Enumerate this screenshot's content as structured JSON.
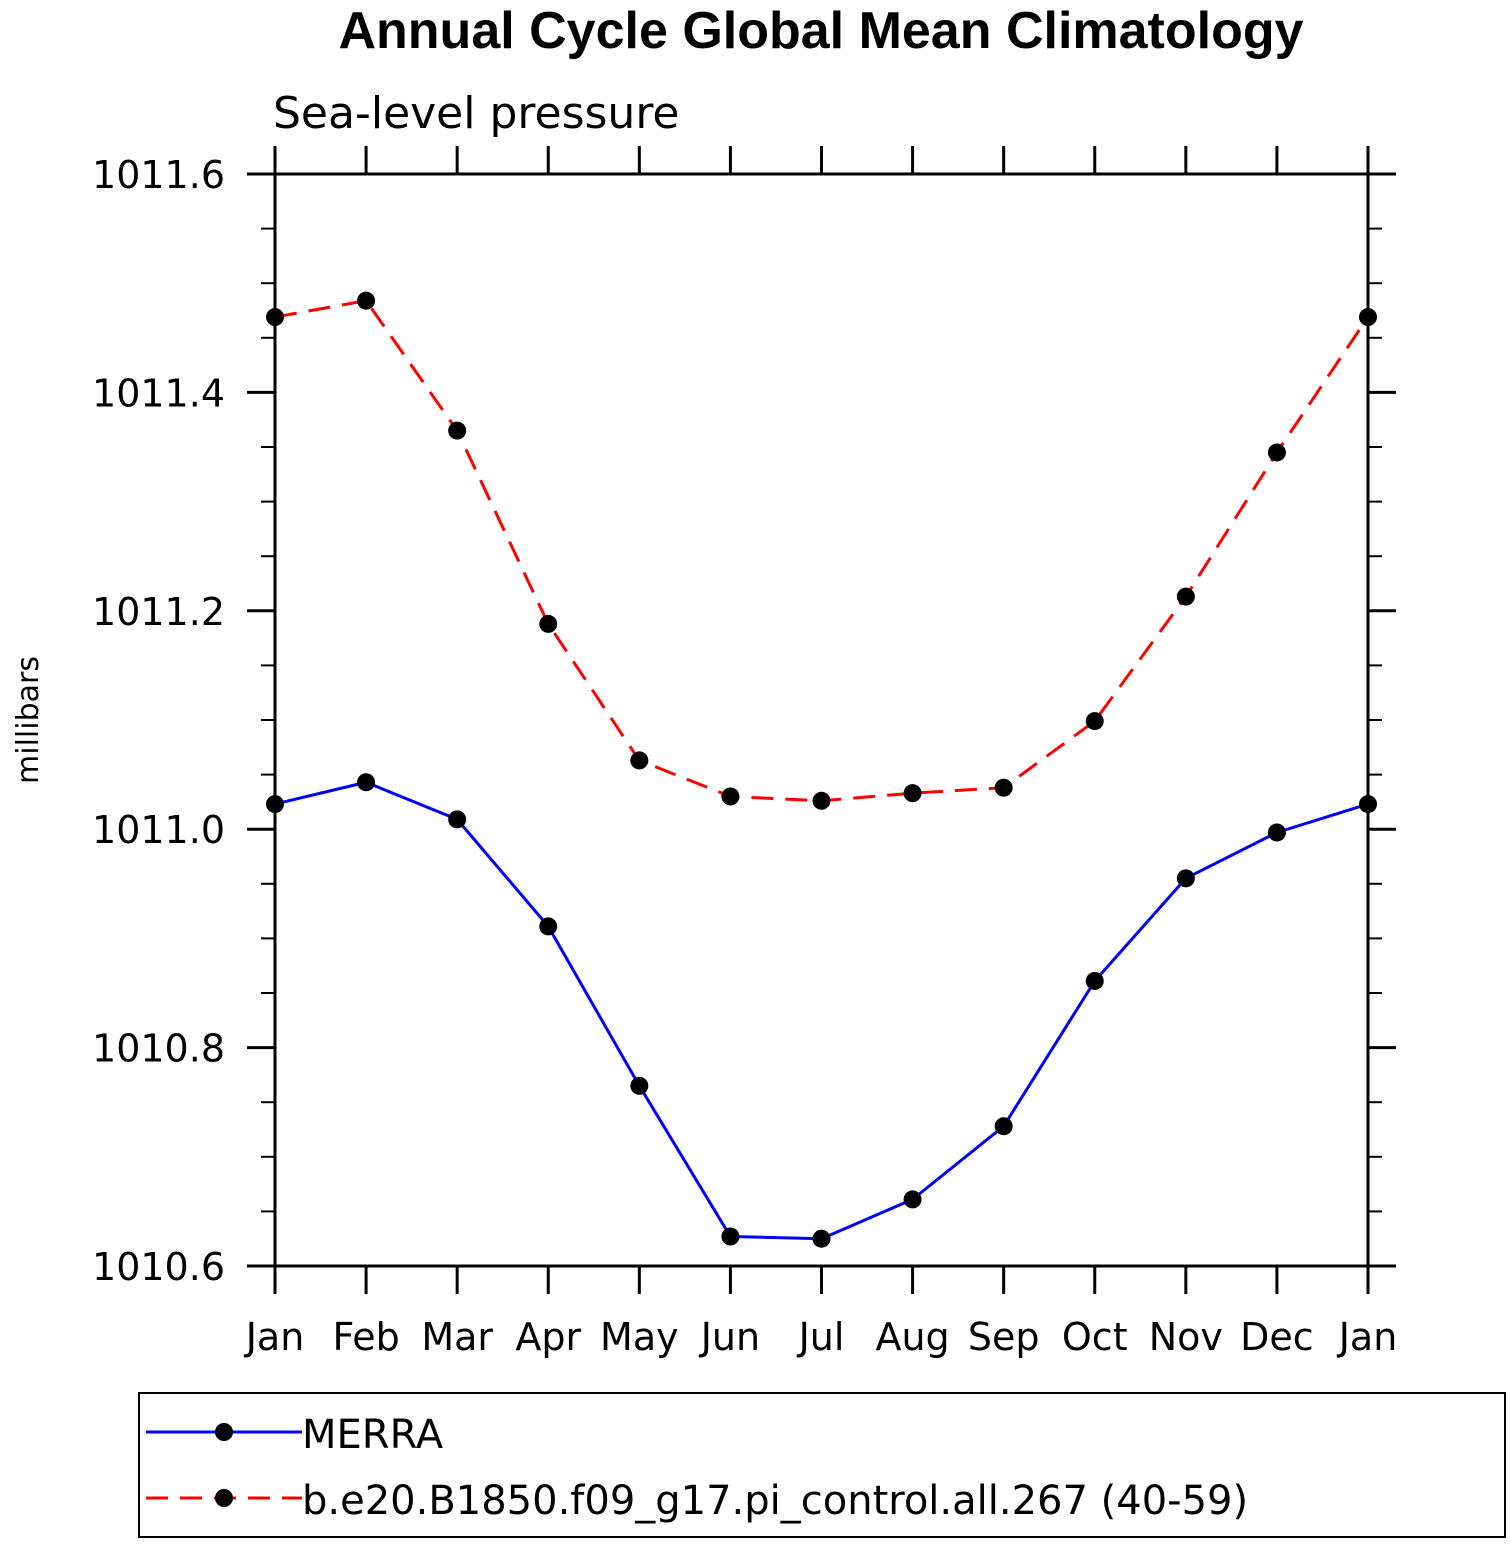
{
  "chart_data": {
    "type": "line",
    "title": "Annual Cycle Global Mean Climatology",
    "subtitle": "Sea-level pressure",
    "ylabel": "millibars",
    "xlabel": "",
    "categories": [
      "Jan",
      "Feb",
      "Mar",
      "Apr",
      "May",
      "Jun",
      "Jul",
      "Aug",
      "Sep",
      "Oct",
      "Nov",
      "Dec",
      "Jan"
    ],
    "ylim": [
      1010.6,
      1011.6
    ],
    "yticks": [
      "1010.6",
      "1010.8",
      "1011.0",
      "1011.2",
      "1011.4",
      "1011.6"
    ],
    "ytick_values": [
      1010.6,
      1010.8,
      1011.0,
      1011.2,
      1011.4,
      1011.6
    ],
    "series": [
      {
        "name": "MERRA",
        "color": "#0000ff",
        "dash": "solid",
        "values": [
          1011.023,
          1011.043,
          1011.009,
          1010.911,
          1010.765,
          1010.627,
          1010.625,
          1010.661,
          1010.728,
          1010.861,
          1010.955,
          1010.997,
          1011.023
        ]
      },
      {
        "name": "b.e20.B1850.f09_g17.pi_control.all.267 (40-59)",
        "color": "#ff0000",
        "dash": "dashed",
        "values": [
          1011.469,
          1011.484,
          1011.365,
          1011.188,
          1011.063,
          1011.03,
          1011.026,
          1011.033,
          1011.038,
          1011.099,
          1011.213,
          1011.345,
          1011.469
        ]
      }
    ],
    "grid": false,
    "legend_position": "bottom"
  }
}
